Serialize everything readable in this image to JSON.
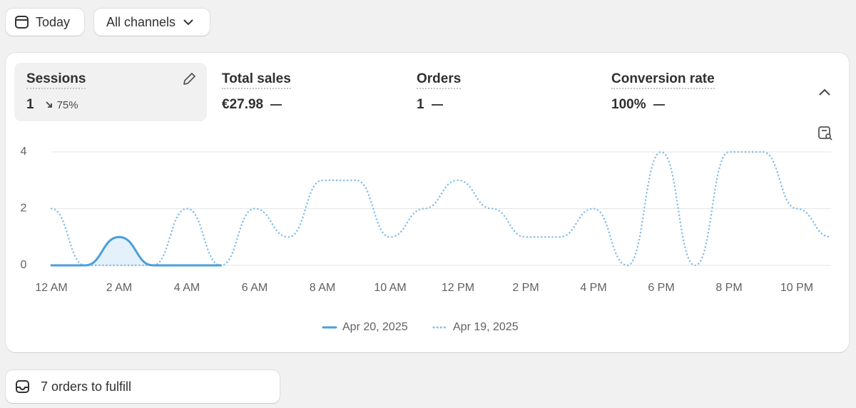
{
  "toolbar": {
    "date_button": "Today",
    "channel_button": "All channels"
  },
  "metrics": [
    {
      "label": "Sessions",
      "value": "1",
      "change": "75%"
    },
    {
      "label": "Total sales",
      "value": "€27.98"
    },
    {
      "label": "Orders",
      "value": "1"
    },
    {
      "label": "Conversion rate",
      "value": "100%"
    }
  ],
  "chart_data": {
    "type": "line",
    "categories": [
      "12 AM",
      null,
      "2 AM",
      null,
      "4 AM",
      null,
      "6 AM",
      null,
      "8 AM",
      null,
      "10 AM",
      null,
      "12 PM",
      null,
      "2 PM",
      null,
      "4 PM",
      null,
      "6 PM",
      null,
      "8 PM",
      null,
      "10 PM",
      null
    ],
    "series": [
      {
        "name": "Apr 20, 2025",
        "color": "#4a9fdc",
        "style": "solid",
        "values": [
          0,
          0,
          1,
          0,
          0,
          0,
          null,
          null,
          null,
          null,
          null,
          null,
          null,
          null,
          null,
          null,
          null,
          null,
          null,
          null,
          null,
          null,
          null,
          null
        ]
      },
      {
        "name": "Apr 19, 2025",
        "color": "#86bfe8",
        "style": "dotted",
        "values": [
          2,
          0,
          0,
          0,
          2,
          0,
          2,
          1,
          3,
          3,
          1,
          2,
          3,
          2,
          1,
          1,
          2,
          0,
          4,
          0,
          4,
          4,
          2,
          1
        ]
      }
    ],
    "ylim": [
      0,
      4
    ],
    "yticks": [
      0,
      2,
      4
    ],
    "grid": true,
    "legend": "bottom"
  },
  "tasks": {
    "label": "7 orders to fulfill"
  }
}
